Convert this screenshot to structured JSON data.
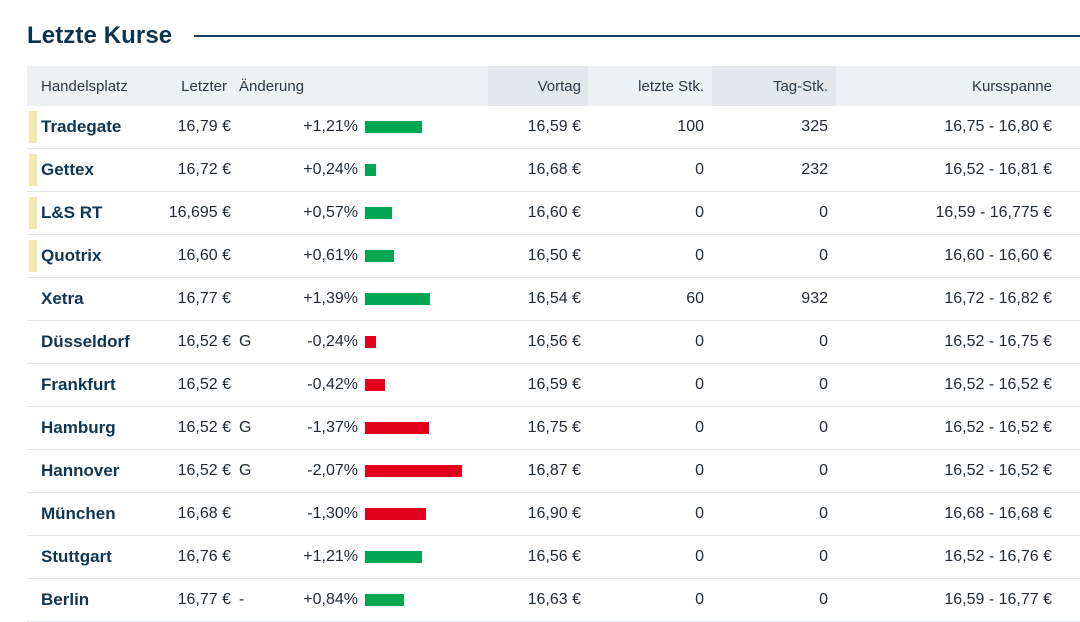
{
  "section": {
    "title": "Letzte Kurse"
  },
  "columns": {
    "venue": "Handelsplatz",
    "last": "Letzter",
    "change": "Änderung",
    "prev_close": "Vortag",
    "last_qty": "letzte Stk.",
    "day_qty": "Tag-Stk.",
    "range": "Kursspanne"
  },
  "colors": {
    "positive": "#00a651",
    "negative": "#e3001b",
    "highlight": "#f1eab0",
    "title": "#0c3350"
  },
  "rows": [
    {
      "venue": "Tradegate",
      "highlight": true,
      "last": "16,79 €",
      "flag": "",
      "change": "+1,21%",
      "change_value": 1.21,
      "prev": "16,59 €",
      "last_qty": "100",
      "day_qty": "325",
      "range": "16,75 - 16,80 €"
    },
    {
      "venue": "Gettex",
      "highlight": true,
      "last": "16,72 €",
      "flag": "",
      "change": "+0,24%",
      "change_value": 0.24,
      "prev": "16,68 €",
      "last_qty": "0",
      "day_qty": "232",
      "range": "16,52 - 16,81 €"
    },
    {
      "venue": "L&S RT",
      "highlight": true,
      "last": "16,695 €",
      "flag": "",
      "change": "+0,57%",
      "change_value": 0.57,
      "prev": "16,60 €",
      "last_qty": "0",
      "day_qty": "0",
      "range": "16,59 - 16,775 €"
    },
    {
      "venue": "Quotrix",
      "highlight": true,
      "last": "16,60 €",
      "flag": "",
      "change": "+0,61%",
      "change_value": 0.61,
      "prev": "16,50 €",
      "last_qty": "0",
      "day_qty": "0",
      "range": "16,60 - 16,60 €"
    },
    {
      "venue": "Xetra",
      "highlight": false,
      "last": "16,77 €",
      "flag": "",
      "change": "+1,39%",
      "change_value": 1.39,
      "prev": "16,54 €",
      "last_qty": "60",
      "day_qty": "932",
      "range": "16,72 - 16,82 €"
    },
    {
      "venue": "Düsseldorf",
      "highlight": false,
      "last": "16,52 €",
      "flag": "G",
      "change": "-0,24%",
      "change_value": -0.24,
      "prev": "16,56 €",
      "last_qty": "0",
      "day_qty": "0",
      "range": "16,52 - 16,75 €"
    },
    {
      "venue": "Frankfurt",
      "highlight": false,
      "last": "16,52 €",
      "flag": "",
      "change": "-0,42%",
      "change_value": -0.42,
      "prev": "16,59 €",
      "last_qty": "0",
      "day_qty": "0",
      "range": "16,52 - 16,52 €"
    },
    {
      "venue": "Hamburg",
      "highlight": false,
      "last": "16,52 €",
      "flag": "G",
      "change": "-1,37%",
      "change_value": -1.37,
      "prev": "16,75 €",
      "last_qty": "0",
      "day_qty": "0",
      "range": "16,52 - 16,52 €"
    },
    {
      "venue": "Hannover",
      "highlight": false,
      "last": "16,52 €",
      "flag": "G",
      "change": "-2,07%",
      "change_value": -2.07,
      "prev": "16,87 €",
      "last_qty": "0",
      "day_qty": "0",
      "range": "16,52 - 16,52 €"
    },
    {
      "venue": "München",
      "highlight": false,
      "last": "16,68 €",
      "flag": "",
      "change": "-1,30%",
      "change_value": -1.3,
      "prev": "16,90 €",
      "last_qty": "0",
      "day_qty": "0",
      "range": "16,68 - 16,68 €"
    },
    {
      "venue": "Stuttgart",
      "highlight": false,
      "last": "16,76 €",
      "flag": "",
      "change": "+1,21%",
      "change_value": 1.21,
      "prev": "16,56 €",
      "last_qty": "0",
      "day_qty": "0",
      "range": "16,52 - 16,76 €"
    },
    {
      "venue": "Berlin",
      "highlight": false,
      "last": "16,77 €",
      "flag": "-",
      "change": "+0,84%",
      "change_value": 0.84,
      "prev": "16,63 €",
      "last_qty": "0",
      "day_qty": "0",
      "range": "16,59 - 16,77 €"
    }
  ]
}
